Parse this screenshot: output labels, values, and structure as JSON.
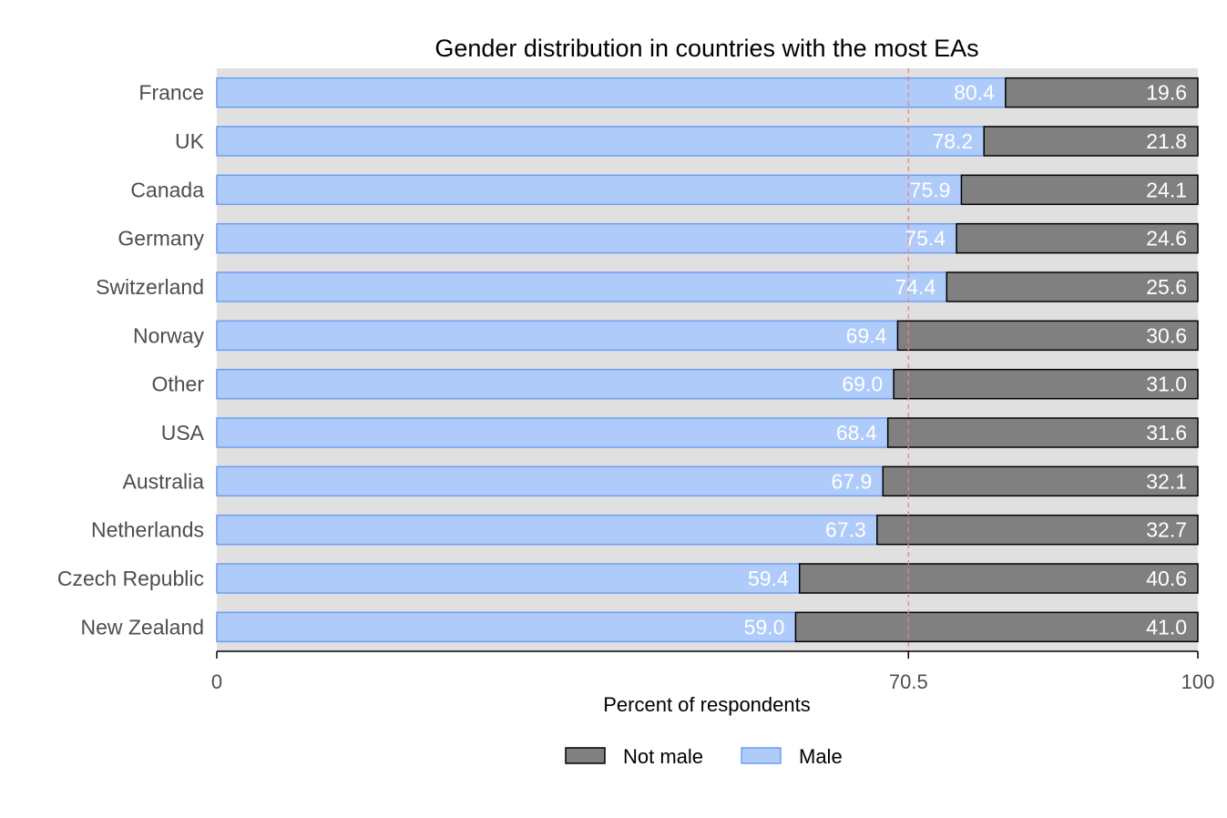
{
  "chart_data": {
    "type": "bar",
    "orientation": "horizontal",
    "stacked": true,
    "title": "Gender distribution in countries with the most EAs",
    "xlabel": "Percent of respondents",
    "ylabel": "",
    "xlim": [
      0,
      100
    ],
    "xticks": [
      0,
      70.5,
      100
    ],
    "xtick_labels": [
      "0",
      "70.5",
      "100"
    ],
    "reference_line": {
      "value": 70.5,
      "style": "dashed",
      "color": "#f08080"
    },
    "categories": [
      "France",
      "UK",
      "Canada",
      "Germany",
      "Switzerland",
      "Norway",
      "Other",
      "USA",
      "Australia",
      "Netherlands",
      "Czech Republic",
      "New Zealand"
    ],
    "series": [
      {
        "name": "Male",
        "color": "#aecbfa",
        "stroke": "#6f9ef0",
        "values": [
          80.4,
          78.2,
          75.9,
          75.4,
          74.4,
          69.4,
          69.0,
          68.4,
          67.9,
          67.3,
          59.4,
          59.0
        ],
        "labels": [
          "80.4",
          "78.2",
          "75.9",
          "75.4",
          "74.4",
          "69.4",
          "69.0",
          "68.4",
          "67.9",
          "67.3",
          "59.4",
          "59.0"
        ]
      },
      {
        "name": "Not male",
        "color": "#808080",
        "stroke": "#000000",
        "values": [
          19.6,
          21.8,
          24.1,
          24.6,
          25.6,
          30.6,
          31.0,
          31.6,
          32.1,
          32.7,
          40.6,
          41.0
        ],
        "labels": [
          "19.6",
          "21.8",
          "24.1",
          "24.6",
          "25.6",
          "30.6",
          "31.0",
          "31.6",
          "32.1",
          "32.7",
          "40.6",
          "41.0"
        ]
      }
    ],
    "legend": {
      "position": "bottom",
      "entries": [
        "Not male",
        "Male"
      ]
    },
    "grid": false,
    "panel_background": "#e0e0e0"
  }
}
